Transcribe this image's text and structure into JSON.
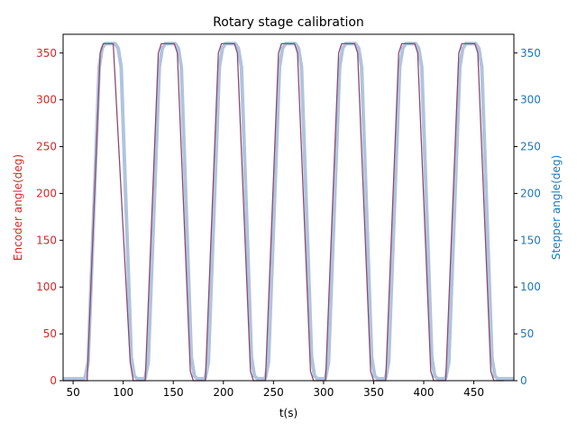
{
  "chart_data": {
    "type": "line",
    "title": "Rotary stage calibration",
    "xlabel": "t(s)",
    "ylabel_left": "Encoder angle(deg)",
    "ylabel_right": "Stepper angle(deg)",
    "xlim": [
      40,
      490
    ],
    "ylim_left": [
      0,
      370
    ],
    "ylim_right": [
      0,
      370
    ],
    "x_ticks": [
      50,
      100,
      150,
      200,
      250,
      300,
      350,
      400,
      450
    ],
    "y_ticks_left": [
      0,
      50,
      100,
      150,
      200,
      250,
      300,
      350
    ],
    "y_ticks_right": [
      0,
      50,
      100,
      150,
      200,
      250,
      300,
      350
    ],
    "grid": false,
    "series": [
      {
        "axis": "left",
        "color": "#d62728",
        "x": [
          40,
          61,
          64,
          77,
          80,
          90,
          91,
          107,
          110,
          119,
          122,
          135,
          138,
          151,
          154,
          167,
          170,
          179,
          182,
          195,
          198,
          211,
          214,
          227,
          230,
          239,
          242,
          255,
          258,
          271,
          274,
          287,
          290,
          299,
          302,
          315,
          318,
          331,
          334,
          347,
          350,
          359,
          362,
          375,
          378,
          391,
          394,
          407,
          410,
          419,
          422,
          435,
          438,
          451,
          454,
          467,
          470,
          480
        ],
        "y": [
          0,
          0,
          0,
          350,
          360,
          360,
          340,
          20,
          0,
          0,
          0,
          350,
          360,
          360,
          350,
          10,
          0,
          0,
          0,
          350,
          360,
          360,
          350,
          10,
          0,
          0,
          0,
          350,
          360,
          360,
          350,
          10,
          0,
          0,
          0,
          350,
          360,
          360,
          350,
          10,
          0,
          0,
          0,
          350,
          360,
          360,
          350,
          10,
          0,
          0,
          0,
          350,
          360,
          360,
          350,
          10,
          0,
          0
        ]
      },
      {
        "axis": "right",
        "color": "#1f77b4",
        "x": [
          40,
          60,
          62,
          65,
          76,
          79,
          82,
          92,
          95,
          98,
          108,
          111,
          114,
          120,
          122,
          125,
          136,
          139,
          142,
          152,
          155,
          158,
          168,
          171,
          174,
          180,
          182,
          185,
          196,
          199,
          202,
          212,
          215,
          218,
          228,
          231,
          234,
          240,
          242,
          245,
          256,
          259,
          262,
          272,
          275,
          278,
          288,
          291,
          294,
          300,
          302,
          305,
          316,
          319,
          322,
          332,
          335,
          338,
          348,
          351,
          354,
          360,
          362,
          365,
          376,
          379,
          382,
          392,
          395,
          398,
          408,
          411,
          414,
          420,
          422,
          425,
          436,
          439,
          442,
          452,
          455,
          458,
          468,
          471,
          474,
          490
        ],
        "y": [
          2,
          2,
          3,
          20,
          335,
          355,
          360,
          360,
          355,
          335,
          25,
          5,
          2,
          2,
          3,
          20,
          335,
          355,
          360,
          360,
          355,
          335,
          25,
          5,
          2,
          2,
          3,
          20,
          335,
          355,
          360,
          360,
          355,
          335,
          25,
          5,
          2,
          2,
          3,
          20,
          335,
          355,
          360,
          360,
          355,
          335,
          25,
          5,
          2,
          2,
          3,
          20,
          335,
          355,
          360,
          360,
          355,
          335,
          25,
          5,
          2,
          2,
          3,
          20,
          335,
          355,
          360,
          360,
          355,
          335,
          25,
          5,
          2,
          2,
          3,
          20,
          335,
          355,
          360,
          360,
          355,
          335,
          25,
          5,
          2,
          2
        ]
      }
    ]
  },
  "colors": {
    "left_axis": "#d62728",
    "right_axis": "#1f77b4",
    "encoder_line": "#8e4a6e",
    "stepper_line": "#b0c4de"
  }
}
